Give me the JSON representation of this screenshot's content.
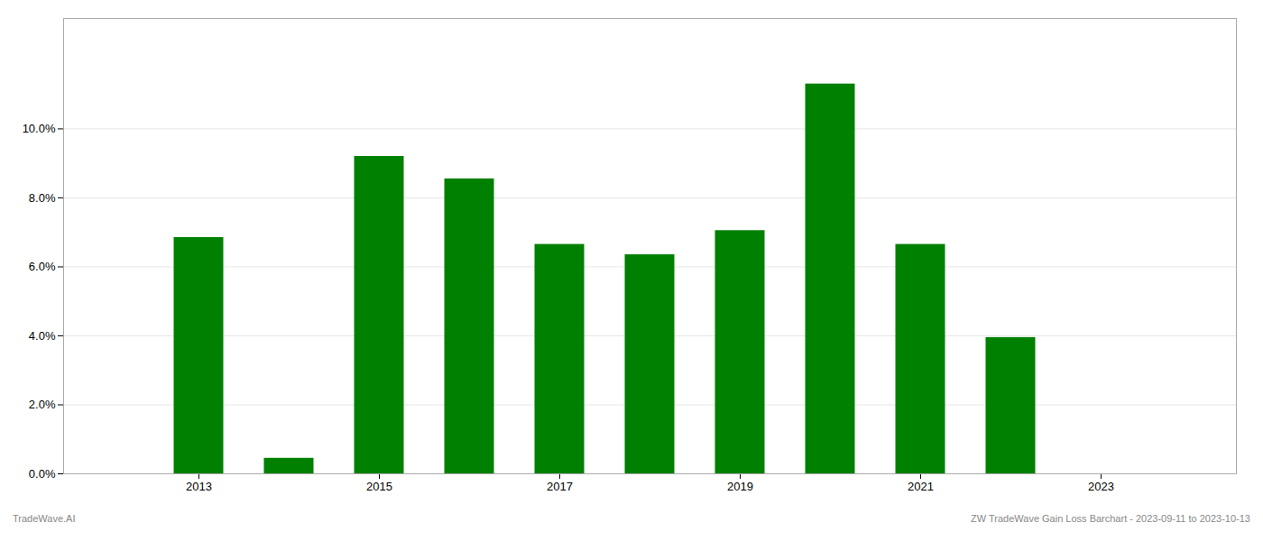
{
  "chart_data": {
    "type": "bar",
    "x": [
      2013,
      2014,
      2015,
      2016,
      2017,
      2018,
      2019,
      2020,
      2021,
      2022,
      2023
    ],
    "values": [
      0.0685,
      0.0045,
      0.092,
      0.0855,
      0.0665,
      0.0635,
      0.0705,
      0.113,
      0.0665,
      0.0395,
      null
    ],
    "color": "#008000",
    "xlim": [
      2011.5,
      2024.5
    ],
    "xticks": [
      2013,
      2015,
      2017,
      2019,
      2021,
      2023
    ],
    "ylim": [
      0,
      0.132
    ],
    "yticks": [
      {
        "value": 0.0,
        "label": "0.0%"
      },
      {
        "value": 0.02,
        "label": "2.0%"
      },
      {
        "value": 0.04,
        "label": "4.0%"
      },
      {
        "value": 0.06,
        "label": "6.0%"
      },
      {
        "value": 0.08,
        "label": "8.0%"
      },
      {
        "value": 0.1,
        "label": "10.0%"
      }
    ],
    "grid": true,
    "annotations": [
      "TradeWave.AI",
      "ZW TradeWave Gain Loss Barchart - 2023-09-11 to 2023-10-13"
    ]
  }
}
